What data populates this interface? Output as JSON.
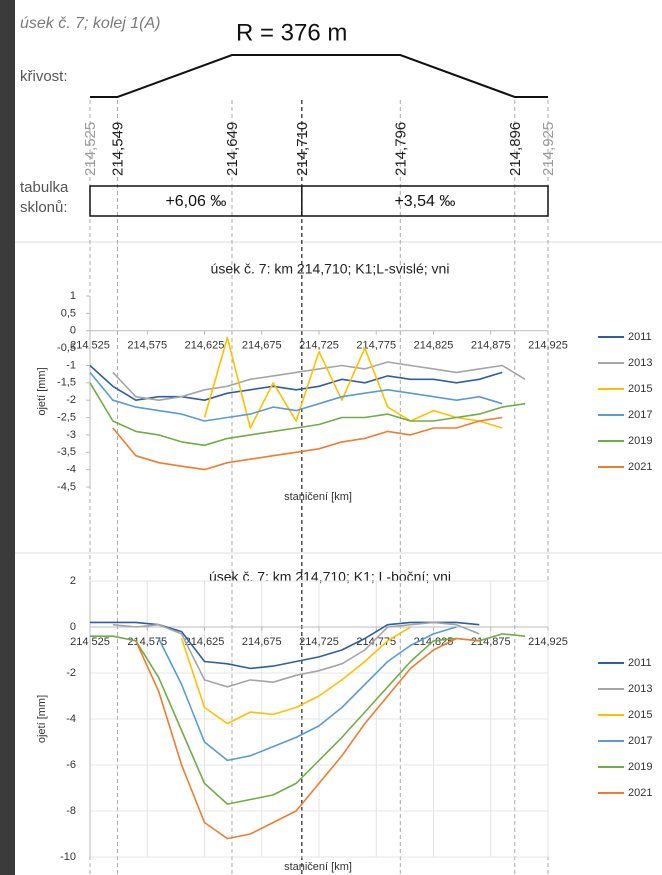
{
  "header": {
    "section": "úsek č. 7; kolej 1(A)",
    "radius": "R = 376 m",
    "curvature_label": "křivost:",
    "gradient_label": [
      "tabulka",
      "sklonů:"
    ]
  },
  "stations": [
    {
      "value": 214.525,
      "label": "214,525"
    },
    {
      "value": 214.549,
      "label": "214,549"
    },
    {
      "value": 214.649,
      "label": "214,649"
    },
    {
      "value": 214.71,
      "label": "214,710"
    },
    {
      "value": 214.796,
      "label": "214,796"
    },
    {
      "value": 214.896,
      "label": "214,896"
    },
    {
      "value": 214.925,
      "label": "214,925"
    }
  ],
  "gradients": [
    "+6,06 ‰",
    "+3,54 ‰"
  ],
  "chart_data": [
    {
      "type": "line",
      "title": "úsek č. 7: km 214,710; K1;L-svislé; vni",
      "xlabel": "staničení [km]",
      "ylabel": "ojetí [mm]",
      "xlim": [
        214.525,
        214.925
      ],
      "xticks": [
        {
          "value": 214.525,
          "label": "214,525"
        },
        {
          "value": 214.575,
          "label": "214,575"
        },
        {
          "value": 214.625,
          "label": "214,625"
        },
        {
          "value": 214.675,
          "label": "214,675"
        },
        {
          "value": 214.725,
          "label": "214,725"
        },
        {
          "value": 214.775,
          "label": "214,775"
        },
        {
          "value": 214.825,
          "label": "214,825"
        },
        {
          "value": 214.875,
          "label": "214,875"
        },
        {
          "value": 214.925,
          "label": "214,925"
        }
      ],
      "ylim": [
        -4.5,
        1
      ],
      "yticks": [
        1,
        {
          "value": 0.5,
          "label": "0,5"
        },
        0,
        {
          "value": -0.5,
          "label": "-0,5"
        },
        -1,
        {
          "value": -1.5,
          "label": "-1,5"
        },
        -2,
        {
          "value": -2.5,
          "label": "-2,5"
        },
        -3,
        {
          "value": -3.5,
          "label": "-3,5"
        },
        -4,
        {
          "value": -4.5,
          "label": "-4,5"
        }
      ],
      "grid": false,
      "legend": "right",
      "x": [
        214.525,
        214.545,
        214.565,
        214.585,
        214.605,
        214.625,
        214.645,
        214.665,
        214.685,
        214.705,
        214.725,
        214.745,
        214.765,
        214.785,
        214.805,
        214.825,
        214.845,
        214.865,
        214.885,
        214.905,
        214.925
      ],
      "series": [
        {
          "name": "2011",
          "color": "#2f5f9e",
          "values": [
            -1.0,
            -1.6,
            -2.0,
            -1.9,
            -1.9,
            -2.0,
            -1.8,
            -1.7,
            -1.6,
            -1.7,
            -1.6,
            -1.4,
            -1.5,
            -1.3,
            -1.4,
            -1.4,
            -1.5,
            -1.4,
            -1.2,
            null,
            null
          ]
        },
        {
          "name": "2013",
          "color": "#a5a5a5",
          "values": [
            null,
            -1.2,
            -1.9,
            -2.0,
            -1.9,
            -1.7,
            -1.6,
            -1.4,
            -1.3,
            -1.2,
            -1.1,
            -1.0,
            -1.1,
            -0.9,
            -1.0,
            -1.1,
            -1.2,
            -1.1,
            -1.0,
            -1.4,
            null
          ]
        },
        {
          "name": "2015",
          "color": "#ffc000",
          "values": [
            null,
            null,
            null,
            null,
            null,
            -2.5,
            -0.2,
            -2.8,
            -1.5,
            -2.6,
            -0.6,
            -2.0,
            -0.5,
            -2.2,
            -2.6,
            -2.3,
            -2.5,
            -2.6,
            -2.8,
            null,
            null
          ]
        },
        {
          "name": "2017",
          "color": "#5b9bd5",
          "values": [
            -1.2,
            -2.0,
            -2.2,
            -2.3,
            -2.4,
            -2.6,
            -2.5,
            -2.4,
            -2.2,
            -2.3,
            -2.1,
            -1.9,
            -1.8,
            -1.7,
            -1.8,
            -1.9,
            -2.0,
            -1.9,
            -2.1,
            null,
            null
          ]
        },
        {
          "name": "2019",
          "color": "#70ad47",
          "values": [
            -1.5,
            -2.6,
            -2.9,
            -3.0,
            -3.2,
            -3.3,
            -3.1,
            -3.0,
            -2.9,
            -2.8,
            -2.7,
            -2.5,
            -2.5,
            -2.4,
            -2.6,
            -2.6,
            -2.5,
            -2.4,
            -2.2,
            -2.1,
            null
          ]
        },
        {
          "name": "2021",
          "color": "#ed7d31",
          "values": [
            null,
            -2.8,
            -3.6,
            -3.8,
            -3.9,
            -4.0,
            -3.8,
            -3.7,
            -3.6,
            -3.5,
            -3.4,
            -3.2,
            -3.1,
            -2.9,
            -3.0,
            -2.8,
            -2.8,
            -2.6,
            -2.5,
            null,
            null
          ]
        }
      ]
    },
    {
      "type": "line",
      "title": "úsek č. 7: km 214,710; K1; L-boční; vni",
      "xlabel": "staničení [km]",
      "ylabel": "ojetí [mm]",
      "xlim": [
        214.525,
        214.925
      ],
      "xticks": [
        {
          "value": 214.525,
          "label": "214,525"
        },
        {
          "value": 214.575,
          "label": "214,575"
        },
        {
          "value": 214.625,
          "label": "214,625"
        },
        {
          "value": 214.675,
          "label": "214,675"
        },
        {
          "value": 214.725,
          "label": "214,725"
        },
        {
          "value": 214.775,
          "label": "214,775"
        },
        {
          "value": 214.825,
          "label": "214,825"
        },
        {
          "value": 214.875,
          "label": "214,875"
        },
        {
          "value": 214.925,
          "label": "214,925"
        }
      ],
      "ylim": [
        -10,
        2
      ],
      "yticks": [
        2,
        0,
        -2,
        -4,
        -6,
        -8,
        -10
      ],
      "grid": true,
      "legend": "right",
      "x": [
        214.525,
        214.545,
        214.565,
        214.585,
        214.605,
        214.625,
        214.645,
        214.665,
        214.685,
        214.705,
        214.725,
        214.745,
        214.765,
        214.785,
        214.805,
        214.825,
        214.845,
        214.865,
        214.885,
        214.905,
        214.925
      ],
      "series": [
        {
          "name": "2011",
          "color": "#2f5f9e",
          "values": [
            0.2,
            0.2,
            0.2,
            0.1,
            -0.2,
            -1.5,
            -1.6,
            -1.8,
            -1.7,
            -1.5,
            -1.3,
            -1.0,
            -0.5,
            0.1,
            0.2,
            0.2,
            0.2,
            0.1,
            null,
            null,
            null
          ]
        },
        {
          "name": "2013",
          "color": "#a5a5a5",
          "values": [
            null,
            0.1,
            0.0,
            0.1,
            -0.3,
            -2.3,
            -2.6,
            -2.3,
            -2.4,
            -2.1,
            -1.9,
            -1.6,
            -1.0,
            0.0,
            0.1,
            0.2,
            0.1,
            -0.3,
            null,
            null,
            null
          ]
        },
        {
          "name": "2015",
          "color": "#ffc000",
          "values": [
            null,
            null,
            null,
            null,
            -0.5,
            -3.5,
            -4.2,
            -3.7,
            -3.8,
            -3.5,
            -3.0,
            -2.3,
            -1.5,
            -0.6,
            0.0,
            null,
            null,
            null,
            null,
            null,
            null
          ]
        },
        {
          "name": "2017",
          "color": "#5b9bd5",
          "values": [
            null,
            null,
            null,
            -0.5,
            -2.5,
            -5.0,
            -5.8,
            -5.6,
            -5.2,
            -4.8,
            -4.3,
            -3.5,
            -2.5,
            -1.5,
            -0.8,
            -0.3,
            0.0,
            null,
            null,
            null,
            null
          ]
        },
        {
          "name": "2019",
          "color": "#70ad47",
          "values": [
            -0.4,
            -0.4,
            -0.6,
            -2.2,
            -4.5,
            -6.8,
            -7.7,
            -7.5,
            -7.3,
            -6.8,
            -5.8,
            -4.8,
            -3.7,
            -2.6,
            -1.5,
            -0.6,
            -0.5,
            -0.6,
            -0.3,
            -0.4,
            null
          ]
        },
        {
          "name": "2021",
          "color": "#ed7d31",
          "values": [
            null,
            null,
            -0.6,
            -2.8,
            -6.0,
            -8.5,
            -9.2,
            -9.0,
            -8.5,
            -8.0,
            -6.8,
            -5.6,
            -4.2,
            -3.0,
            -1.8,
            -1.0,
            -0.5,
            -0.6,
            null,
            null,
            null
          ]
        }
      ]
    }
  ]
}
